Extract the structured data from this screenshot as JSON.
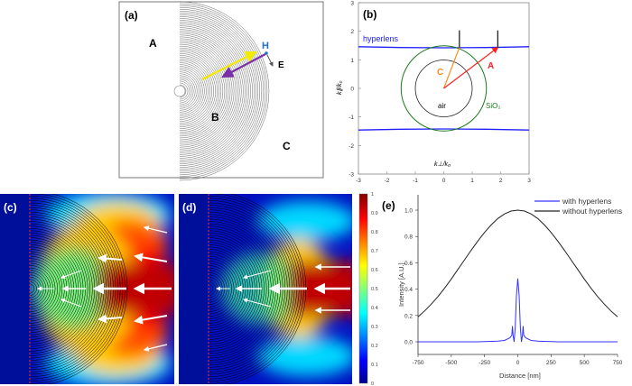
{
  "panel_a": {
    "label": "(a)",
    "regions": {
      "A": "A",
      "B": "B",
      "C": "C"
    },
    "field_labels": {
      "H": "H",
      "E": "E"
    },
    "colors": {
      "h_label": "#1f6fd1",
      "incident_arrow": "#f2ea00",
      "reflected_arrow": "#7a2fa8"
    }
  },
  "panel_b": {
    "label": "(b)",
    "xlabel": "k⊥/k₀",
    "ylabel": "k∥/k₀",
    "xticks": [
      "-3",
      "-2",
      "-1",
      "0",
      "1",
      "2",
      "3"
    ],
    "yticks": [
      "3",
      "2",
      "1",
      "0",
      "-1",
      "-2",
      "-3"
    ],
    "curve_label": "hyperlens",
    "air_label": "air",
    "sio2_label": "SiO₂",
    "vector_a": "A",
    "vector_c": "C",
    "colors": {
      "hyperlens": "#2020ff",
      "sio2": "#1a7a1a",
      "air": "#222222",
      "a": "#ff2020",
      "c": "#ff8c1a"
    }
  },
  "panel_c": {
    "label": "(c)"
  },
  "panel_d": {
    "label": "(d)"
  },
  "colorbar": {
    "ticks": [
      "1",
      "0.9",
      "0.8",
      "0.7",
      "0.6",
      "0.5",
      "0.4",
      "0.3",
      "0.2",
      "0.1",
      "0"
    ]
  },
  "chart_data": [
    {
      "type": "line",
      "title": "(b)",
      "xlabel": "k⊥/k₀",
      "ylabel": "k∥/k₀",
      "xlim": [
        -3,
        3
      ],
      "ylim": [
        -3,
        3
      ],
      "series": [
        {
          "name": "hyperlens (upper)",
          "x": [
            -3,
            -1.5,
            0,
            1.5,
            3
          ],
          "y": [
            1.46,
            1.43,
            1.42,
            1.43,
            1.46
          ]
        },
        {
          "name": "hyperlens (lower)",
          "x": [
            -3,
            -1.5,
            0,
            1.5,
            3
          ],
          "y": [
            -1.46,
            -1.43,
            -1.42,
            -1.43,
            -1.46
          ]
        },
        {
          "name": "air",
          "circle_radius": 1.0
        },
        {
          "name": "SiO2",
          "circle_radius": 1.5
        },
        {
          "name": "A",
          "vector": [
            1.9,
            1.43
          ]
        },
        {
          "name": "C",
          "vector": [
            0.55,
            1.43
          ]
        }
      ]
    },
    {
      "type": "line",
      "title": "(e)",
      "xlabel": "Distance [nm]",
      "ylabel": "Intensity [A.U.]",
      "xlim": [
        -750,
        750
      ],
      "ylim": [
        -0.1,
        1.1
      ],
      "xticks": [
        "-750",
        "-500",
        "-250",
        "0",
        "250",
        "500",
        "750"
      ],
      "yticks": [
        "0.0",
        "0.2",
        "0.4",
        "0.6",
        "0.8",
        "1.0"
      ],
      "legend": "top-right",
      "series": [
        {
          "name": "with hyperlens",
          "color": "#3333ff",
          "x": [
            -750,
            -300,
            -150,
            -100,
            -60,
            -45,
            -40,
            -35,
            -28,
            -20,
            -10,
            0,
            10,
            20,
            28,
            35,
            40,
            45,
            60,
            100,
            150,
            300,
            750
          ],
          "y": [
            0,
            0,
            0.005,
            0.01,
            0.03,
            0.05,
            0.12,
            0.05,
            0,
            0.1,
            0.35,
            0.48,
            0.35,
            0.1,
            0,
            0.05,
            0.12,
            0.05,
            0.03,
            0.01,
            0.005,
            0,
            0
          ]
        },
        {
          "name": "without hyperlens",
          "color": "#222222",
          "x": [
            -750,
            -700,
            -650,
            -600,
            -550,
            -500,
            -450,
            -400,
            -350,
            -300,
            -250,
            -200,
            -150,
            -100,
            -50,
            0,
            50,
            100,
            150,
            200,
            250,
            300,
            350,
            400,
            450,
            500,
            550,
            600,
            650,
            700,
            750
          ],
          "y": [
            0.19,
            0.235,
            0.286,
            0.344,
            0.408,
            0.477,
            0.55,
            0.623,
            0.696,
            0.766,
            0.831,
            0.888,
            0.936,
            0.971,
            0.993,
            1.0,
            0.993,
            0.971,
            0.936,
            0.888,
            0.831,
            0.766,
            0.696,
            0.623,
            0.55,
            0.477,
            0.408,
            0.344,
            0.286,
            0.235,
            0.19
          ]
        }
      ]
    }
  ]
}
